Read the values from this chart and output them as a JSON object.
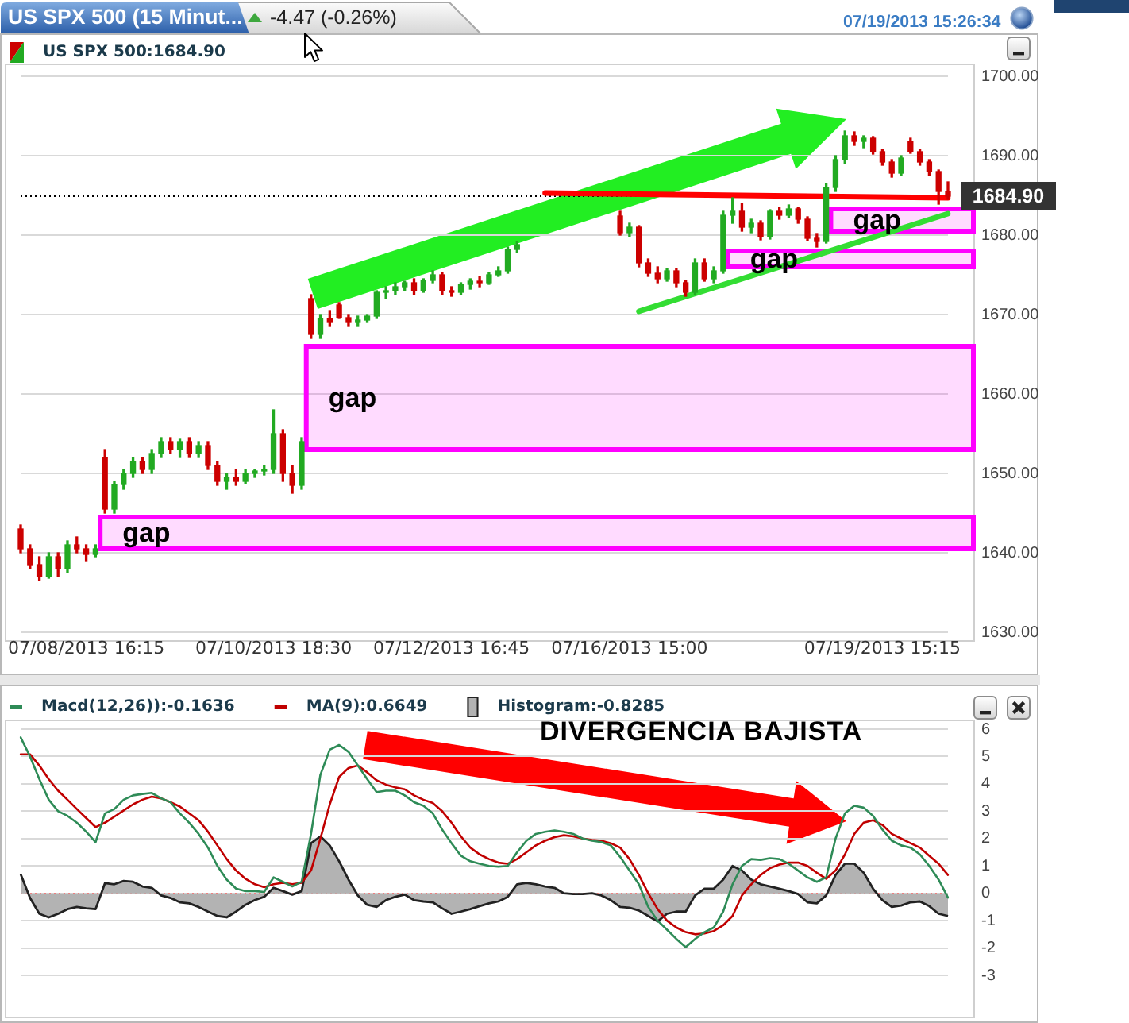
{
  "chart_data": [
    {
      "type": "candlestick",
      "title": "US SPX 500 (15 Minut...",
      "subtitle": "-4.47 (-0.26%)",
      "annotations": [
        "07/19/2013 15:26:34"
      ],
      "categories": [
        null,
        null,
        null,
        null,
        null,
        null,
        null,
        "07/08/2013 16:15",
        null,
        null,
        null,
        null,
        null,
        null,
        null,
        null,
        null,
        null,
        null,
        null,
        null,
        null,
        null,
        null,
        null,
        null,
        null,
        "07/10/2013 18:30",
        null,
        null,
        null,
        null,
        null,
        null,
        null,
        null,
        null,
        null,
        null,
        null,
        null,
        null,
        null,
        null,
        null,
        null,
        "07/12/2013 16:45",
        null,
        null,
        null,
        null,
        null,
        null,
        null,
        null,
        null,
        null,
        null,
        null,
        null,
        null,
        null,
        null,
        null,
        null,
        "07/16/2013 15:00",
        null,
        null,
        null,
        null,
        null,
        null,
        null,
        null,
        null,
        null,
        null,
        null,
        null,
        null,
        null,
        null,
        null,
        null,
        null,
        null,
        null,
        null,
        null,
        null,
        null,
        null,
        "07/19/2013 15:15",
        null,
        null,
        null,
        null,
        null,
        null,
        null
      ],
      "series": [
        {
          "name": "US SPX 500:1684.90",
          "ohlc": [
            [
              1643,
              1643.5,
              1640,
              1640.5
            ],
            [
              1640.5,
              1641,
              1638,
              1638.5
            ],
            [
              1638.5,
              1639.5,
              1636.5,
              1637
            ],
            [
              1637,
              1640,
              1636.8,
              1639.5
            ],
            [
              1639.5,
              1640,
              1637,
              1638
            ],
            [
              1638,
              1641.5,
              1637.5,
              1641
            ],
            [
              1641,
              1642,
              1640,
              1640.5
            ],
            [
              1640.5,
              1641,
              1639,
              1639.8
            ],
            [
              1639.8,
              1641,
              1639.5,
              1640.5
            ],
            [
              1652,
              1653,
              1645,
              1645.5
            ],
            [
              1645.5,
              1649,
              1645,
              1648.6
            ],
            [
              1648.6,
              1650.5,
              1648,
              1650
            ],
            [
              1650,
              1652,
              1649.5,
              1651.5
            ],
            [
              1651.5,
              1652,
              1650,
              1650.5
            ],
            [
              1650.5,
              1653,
              1650,
              1652.5
            ],
            [
              1652.5,
              1654.5,
              1652,
              1654
            ],
            [
              1654,
              1654.5,
              1652.5,
              1653
            ],
            [
              1653,
              1654.3,
              1652,
              1654
            ],
            [
              1654,
              1654.5,
              1652,
              1652.5
            ],
            [
              1652.5,
              1654,
              1652,
              1653.5
            ],
            [
              1653.5,
              1654,
              1650.5,
              1651
            ],
            [
              1651,
              1651.5,
              1648.5,
              1649
            ],
            [
              1649,
              1650,
              1648,
              1649.5
            ],
            [
              1649.5,
              1650.5,
              1648.5,
              1649
            ],
            [
              1649,
              1650.5,
              1648.7,
              1650
            ],
            [
              1650,
              1650.5,
              1649.5,
              1650.3
            ],
            [
              1650.3,
              1651,
              1649.8,
              1650.5
            ],
            [
              1650.5,
              1658,
              1650,
              1655
            ],
            [
              1655,
              1655.5,
              1649,
              1650
            ],
            [
              1650,
              1651,
              1647.5,
              1648.5
            ],
            [
              1648.5,
              1654.5,
              1648,
              1654
            ],
            [
              1672,
              1672.5,
              1667,
              1667.5
            ],
            [
              1667.5,
              1670,
              1667,
              1669.5
            ],
            [
              1669.5,
              1670.5,
              1668.5,
              1669
            ],
            [
              1671.2,
              1671.5,
              1669.5,
              1669.6
            ],
            [
              1669.6,
              1670,
              1668.5,
              1669
            ],
            [
              1669,
              1669.8,
              1668.5,
              1669.3
            ],
            [
              1669.3,
              1670,
              1669,
              1669.8
            ],
            [
              1669.8,
              1673,
              1669.5,
              1672.8
            ],
            [
              1672.8,
              1673.5,
              1672,
              1673
            ],
            [
              1673,
              1674,
              1672.5,
              1673.5
            ],
            [
              1673.5,
              1674.2,
              1673,
              1674
            ],
            [
              1674,
              1674.5,
              1672.5,
              1673
            ],
            [
              1673,
              1674.5,
              1672.8,
              1674.3
            ],
            [
              1674.3,
              1675.5,
              1674,
              1675
            ],
            [
              1675,
              1675.3,
              1672.5,
              1673
            ],
            [
              1673,
              1673.5,
              1672.3,
              1672.8
            ],
            [
              1672.8,
              1674,
              1672.5,
              1673.8
            ],
            [
              1673.8,
              1674.5,
              1673.2,
              1674.2
            ],
            [
              1674.2,
              1674.8,
              1673.5,
              1674
            ],
            [
              1674,
              1675.3,
              1673.8,
              1675
            ],
            [
              1675,
              1676,
              1674.8,
              1675.5
            ],
            [
              1675.5,
              1678.5,
              1675.2,
              1678.2
            ],
            [
              1678.2,
              1679.2,
              1677.8,
              1678.8
            ],
            null,
            null,
            null,
            null,
            null,
            null,
            null,
            null,
            null,
            null,
            [
              1682.4,
              1683,
              1680,
              1680.3
            ],
            [
              1680.3,
              1681.5,
              1679.8,
              1681
            ],
            [
              1681,
              1681.2,
              1676,
              1676.5
            ],
            [
              1676.5,
              1677,
              1674.8,
              1675.2
            ],
            [
              1675.2,
              1676,
              1674,
              1674.5
            ],
            [
              1674.5,
              1675.8,
              1674.2,
              1675.5
            ],
            [
              1675.5,
              1675.8,
              1673.5,
              1674
            ],
            [
              1674,
              1674.3,
              1672.3,
              1672.8
            ],
            [
              1672.8,
              1677,
              1672.5,
              1676.5
            ],
            [
              1676.5,
              1677,
              1674.2,
              1674.5
            ],
            [
              1674.5,
              1676,
              1674,
              1675.5
            ],
            [
              1675.5,
              1683,
              1675.2,
              1682.5
            ],
            [
              1682.5,
              1684.7,
              1681.5,
              1683
            ],
            [
              1683,
              1684,
              1680.5,
              1681
            ],
            [
              1681,
              1682,
              1680.3,
              1681.5
            ],
            [
              1681.5,
              1681.8,
              1679.4,
              1679.8
            ],
            [
              1679.8,
              1683.2,
              1679.5,
              1683
            ],
            [
              1683,
              1683.5,
              1682,
              1682.5
            ],
            [
              1682.5,
              1683.8,
              1682.2,
              1683.3
            ],
            [
              1683.3,
              1683.5,
              1681.5,
              1682
            ],
            [
              1682,
              1682.3,
              1679.3,
              1679.6
            ],
            [
              1679.6,
              1680.2,
              1678.5,
              1679.2
            ],
            [
              1679.2,
              1686.5,
              1679,
              1686
            ],
            [
              1686,
              1690,
              1685.5,
              1689.5
            ],
            [
              1689.5,
              1693.1,
              1689,
              1692.5
            ],
            [
              1692.5,
              1693,
              1691.3,
              1691.8
            ],
            [
              1691.8,
              1692.5,
              1691,
              1692.2
            ],
            [
              1692.2,
              1692.4,
              1690.2,
              1690.5
            ],
            [
              1690.5,
              1690.8,
              1688.8,
              1689.2
            ],
            [
              1689.2,
              1689.5,
              1687.3,
              1687.8
            ],
            [
              1687.8,
              1690,
              1687.5,
              1689.7
            ],
            [
              1691.8,
              1692.2,
              1690.3,
              1690.5
            ],
            [
              1690.5,
              1690.8,
              1688.8,
              1689.2
            ],
            [
              1689.2,
              1689.5,
              1687.5,
              1688
            ],
            [
              1688,
              1688.2,
              1683.9,
              1685.5
            ],
            [
              1685.5,
              1686.7,
              1684.5,
              1684.9
            ]
          ],
          "colors": [
            "#cc0000",
            "#cc0000",
            "#cc0000",
            "#22aa22",
            "#cc0000",
            "#22aa22",
            "#cc0000",
            "#cc0000",
            "#22aa22",
            "#cc0000",
            "#22aa22",
            "#22aa22",
            "#22aa22",
            "#cc0000",
            "#22aa22",
            "#22aa22",
            "#cc0000",
            "#22aa22",
            "#cc0000",
            "#22aa22",
            "#cc0000",
            "#cc0000",
            "#22aa22",
            "#cc0000",
            "#22aa22",
            "#22aa22",
            "#22aa22",
            "#22aa22",
            "#cc0000",
            "#cc0000",
            "#22aa22",
            "#cc0000",
            "#22aa22",
            "#cc0000",
            "#cc0000",
            "#cc0000",
            "#22aa22",
            "#22aa22",
            "#22aa22",
            "#22aa22",
            "#22aa22",
            "#22aa22",
            "#cc0000",
            "#22aa22",
            "#22aa22",
            "#cc0000",
            "#cc0000",
            "#22aa22",
            "#22aa22",
            "#cc0000",
            "#22aa22",
            "#22aa22",
            "#22aa22",
            "#22aa22",
            null,
            null,
            null,
            null,
            null,
            null,
            null,
            null,
            null,
            null,
            "#cc0000",
            "#22aa22",
            "#cc0000",
            "#cc0000",
            "#cc0000",
            "#22aa22",
            "#cc0000",
            "#cc0000",
            "#22aa22",
            "#cc0000",
            "#22aa22",
            "#22aa22",
            "#22aa22",
            "#cc0000",
            "#22aa22",
            "#cc0000",
            "#22aa22",
            "#cc0000",
            "#22aa22",
            "#cc0000",
            "#cc0000",
            "#cc0000",
            "#22aa22",
            "#22aa22",
            "#22aa22",
            "#cc0000",
            "#22aa22",
            "#cc0000",
            "#cc0000",
            "#cc0000",
            "#22aa22",
            "#cc0000",
            "#cc0000",
            "#cc0000",
            "#cc0000",
            "#cc0000"
          ]
        },
        {
          "type": "line",
          "color": "#ff0000",
          "values": [
            null,
            null,
            null,
            null,
            null,
            null,
            null,
            null,
            null,
            null,
            null,
            null,
            null,
            null,
            null,
            null,
            null,
            null,
            null,
            null,
            null,
            null,
            null,
            null,
            null,
            null,
            null,
            null,
            null,
            null,
            null,
            null,
            null,
            null,
            null,
            null,
            null,
            null,
            null,
            null,
            null,
            null,
            null,
            null,
            null,
            null,
            null,
            null,
            null,
            null,
            null,
            null,
            null,
            null,
            null,
            null,
            1685.3,
            null,
            null,
            null,
            null,
            null,
            null,
            null,
            null,
            null,
            null,
            null,
            null,
            null,
            null,
            null,
            null,
            null,
            null,
            null,
            null,
            null,
            null,
            null,
            null,
            null,
            null,
            null,
            null,
            null,
            null,
            null,
            null,
            null,
            null,
            null,
            null,
            null,
            null,
            null,
            null,
            null,
            null,
            1684.7
          ]
        },
        {
          "type": "line",
          "color": "#33dd33",
          "values": [
            null,
            null,
            null,
            null,
            null,
            null,
            null,
            null,
            null,
            null,
            null,
            null,
            null,
            null,
            null,
            null,
            null,
            null,
            null,
            null,
            null,
            null,
            null,
            null,
            null,
            null,
            null,
            null,
            null,
            null,
            null,
            null,
            null,
            null,
            null,
            null,
            null,
            null,
            null,
            null,
            null,
            null,
            null,
            null,
            null,
            null,
            null,
            null,
            null,
            null,
            null,
            null,
            null,
            null,
            null,
            null,
            null,
            null,
            null,
            null,
            null,
            null,
            null,
            null,
            null,
            null,
            1670.4,
            null,
            null,
            null,
            null,
            null,
            null,
            null,
            null,
            null,
            null,
            null,
            null,
            null,
            null,
            null,
            null,
            null,
            null,
            null,
            null,
            null,
            null,
            null,
            null,
            null,
            null,
            null,
            null,
            null,
            null,
            null,
            null,
            1682.7
          ]
        }
      ],
      "ylim": [
        1630,
        1700
      ],
      "yticks": [
        {
          "value": 1630,
          "label": "1630.00"
        },
        {
          "value": 1640,
          "label": "1640.00"
        },
        {
          "value": 1650,
          "label": "1650.00"
        },
        {
          "value": 1660,
          "label": "1660.00"
        },
        {
          "value": 1670,
          "label": "1670.00"
        },
        {
          "value": 1680,
          "label": "1680.00"
        },
        {
          "value": 1690,
          "label": "1690.00"
        },
        {
          "value": 1700,
          "label": "1700.00"
        }
      ],
      "grid": "y",
      "legend": "top left",
      "ref_lines": [
        {
          "axis": "y",
          "value": 1684.9,
          "label": "1684.90",
          "color": "#000000",
          "line_style": "dotted"
        }
      ],
      "bands": [
        {
          "axis": "y",
          "from": 1653,
          "to": 1666,
          "label": "gap",
          "color": "#ff00ff"
        },
        {
          "axis": "y",
          "from": 1640.5,
          "to": 1644.5,
          "label": "gap",
          "color": "#ff00ff"
        },
        {
          "axis": "y",
          "from": 1676,
          "to": 1678,
          "label": "gap",
          "color": "#ff00ff"
        },
        {
          "axis": "y",
          "from": 1680.5,
          "to": 1683.3,
          "label": "gap",
          "color": "#ff00ff"
        }
      ]
    },
    {
      "type": "line",
      "annotations": [
        "DIVERGENCIA BAJISTA"
      ],
      "categories": [
        null,
        null,
        null,
        null,
        null,
        null,
        null,
        null,
        null,
        null,
        null,
        null,
        null,
        null,
        null,
        null,
        null,
        null,
        null,
        null,
        null,
        null,
        null,
        null,
        null,
        null,
        null,
        null,
        null,
        null,
        null,
        null,
        null,
        null,
        null,
        null,
        null,
        null,
        null,
        null,
        null,
        null,
        null,
        null,
        null,
        null,
        null,
        null,
        null,
        null,
        null,
        null,
        null,
        null,
        null,
        null,
        null,
        null,
        null,
        null,
        null,
        null,
        null,
        null,
        null,
        null,
        null,
        null,
        null,
        null,
        null,
        null,
        null,
        null,
        null,
        null,
        null,
        null,
        null,
        null,
        null,
        null,
        null,
        null,
        null,
        null,
        null,
        null,
        null,
        null,
        null,
        null,
        null,
        null,
        null,
        null,
        null,
        null,
        null,
        null
      ],
      "series": [
        {
          "name": "Macd(12,26)):-0.1636",
          "color": "#2e8b57",
          "values": [
            5.7,
            5.0,
            4.17,
            3.42,
            3.0,
            2.83,
            2.58,
            2.25,
            1.87,
            2.92,
            3.08,
            3.42,
            3.58,
            3.63,
            3.67,
            3.47,
            3.33,
            2.92,
            2.58,
            2.17,
            1.67,
            1.0,
            0.5,
            0.17,
            0.08,
            0.08,
            0.05,
            0.58,
            0.42,
            0.25,
            0.42,
            2.17,
            4.33,
            5.25,
            5.42,
            5.17,
            4.67,
            4.17,
            3.7,
            3.75,
            3.75,
            3.58,
            3.33,
            3.2,
            2.92,
            2.33,
            1.83,
            1.37,
            1.17,
            1.08,
            1.0,
            0.97,
            1.0,
            1.5,
            1.92,
            2.17,
            2.25,
            2.3,
            2.25,
            2.17,
            2.0,
            1.92,
            1.87,
            1.75,
            1.33,
            0.83,
            0.33,
            -0.5,
            -1.0,
            -1.33,
            -1.67,
            -1.97,
            -1.67,
            -1.42,
            -1.25,
            -0.67,
            0.33,
            1.0,
            1.25,
            1.22,
            1.28,
            1.25,
            1.08,
            0.83,
            0.58,
            0.42,
            0.58,
            2.0,
            2.92,
            3.2,
            3.13,
            2.83,
            2.33,
            1.92,
            1.75,
            1.67,
            1.42,
            1.0,
            0.5,
            -0.16
          ]
        },
        {
          "name": "MA(9):0.6649",
          "color": "#c00000",
          "values": [
            5.08,
            5.08,
            4.67,
            4.17,
            3.75,
            3.42,
            3.08,
            2.75,
            2.42,
            2.58,
            2.8,
            3.03,
            3.25,
            3.42,
            3.53,
            3.47,
            3.33,
            3.17,
            2.92,
            2.67,
            2.25,
            1.75,
            1.25,
            0.83,
            0.53,
            0.33,
            0.22,
            0.33,
            0.38,
            0.33,
            0.38,
            0.83,
            2.0,
            3.25,
            4.25,
            4.58,
            4.67,
            4.42,
            4.13,
            3.97,
            3.87,
            3.8,
            3.58,
            3.42,
            3.3,
            3.0,
            2.58,
            2.08,
            1.67,
            1.42,
            1.25,
            1.12,
            1.08,
            1.25,
            1.5,
            1.75,
            1.92,
            2.05,
            2.12,
            2.08,
            2.0,
            1.95,
            1.92,
            1.83,
            1.67,
            1.25,
            0.67,
            0.0,
            -0.58,
            -1.0,
            -1.25,
            -1.42,
            -1.5,
            -1.47,
            -1.38,
            -1.17,
            -0.83,
            -0.08,
            0.33,
            0.67,
            0.92,
            1.05,
            1.12,
            1.12,
            1.0,
            0.75,
            0.53,
            0.83,
            1.42,
            2.17,
            2.58,
            2.67,
            2.5,
            2.17,
            2.0,
            1.83,
            1.67,
            1.37,
            1.08,
            0.67
          ]
        },
        {
          "name": "Histogram:-0.8285",
          "type": "area",
          "color": "#b3b3b3",
          "values": [
            0.7,
            -0.17,
            -0.75,
            -0.88,
            -0.75,
            -0.58,
            -0.5,
            -0.55,
            -0.58,
            0.37,
            0.33,
            0.45,
            0.42,
            0.25,
            0.2,
            -0.08,
            -0.17,
            -0.33,
            -0.37,
            -0.5,
            -0.67,
            -0.83,
            -0.88,
            -0.67,
            -0.42,
            -0.25,
            -0.13,
            0.2,
            0.08,
            -0.05,
            0.08,
            1.83,
            2.08,
            1.75,
            1.17,
            0.5,
            -0.08,
            -0.42,
            -0.5,
            -0.25,
            -0.13,
            -0.05,
            -0.25,
            -0.3,
            -0.33,
            -0.55,
            -0.75,
            -0.67,
            -0.58,
            -0.47,
            -0.37,
            -0.3,
            -0.13,
            0.33,
            0.38,
            0.33,
            0.25,
            0.2,
            0.0,
            -0.03,
            -0.03,
            0.0,
            -0.08,
            -0.25,
            -0.5,
            -0.53,
            -0.63,
            -0.83,
            -1.03,
            -0.75,
            -0.67,
            -0.67,
            -0.08,
            0.17,
            0.17,
            0.5,
            1.0,
            0.83,
            0.5,
            0.33,
            0.25,
            0.17,
            0.08,
            -0.03,
            -0.33,
            -0.37,
            -0.08,
            0.67,
            1.08,
            1.08,
            0.75,
            0.17,
            -0.25,
            -0.5,
            -0.45,
            -0.33,
            -0.3,
            -0.47,
            -0.75,
            -0.83
          ]
        }
      ],
      "ylim": [
        -3,
        6
      ],
      "yticks": [
        -3,
        -2,
        -1,
        0,
        1,
        2,
        3,
        4,
        5,
        6
      ],
      "grid": "y",
      "legend": "top left",
      "tick_labels": "y",
      "ref_lines": [
        {
          "axis": "y",
          "value": 0,
          "color": "#ff6f6f",
          "line_style": "dotted"
        }
      ]
    }
  ]
}
